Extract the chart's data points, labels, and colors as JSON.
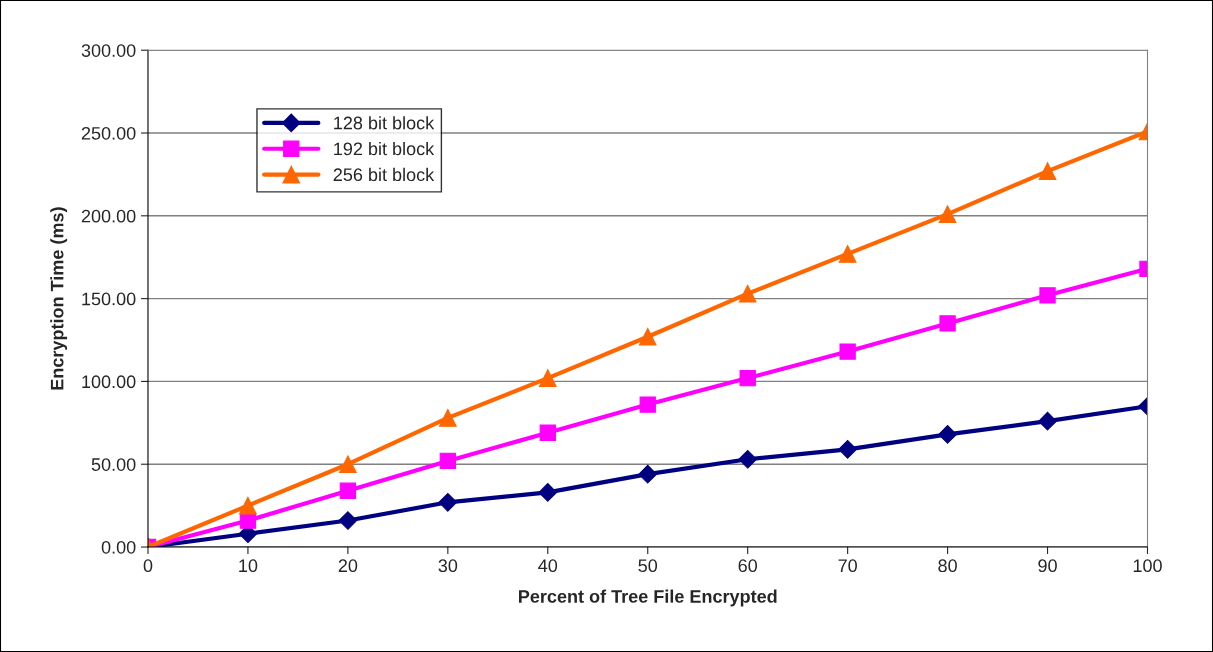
{
  "chart_data": {
    "type": "line",
    "xlabel": "Percent of Tree File Encrypted",
    "ylabel": "Encryption Time (ms)",
    "x": [
      0,
      10,
      20,
      30,
      40,
      50,
      60,
      70,
      80,
      90,
      100
    ],
    "series": [
      {
        "name": "128 bit block",
        "color": "#000080",
        "marker": "diamond",
        "values": [
          0,
          8,
          16,
          27,
          33,
          44,
          53,
          59,
          68,
          76,
          85
        ]
      },
      {
        "name": "192 bit block",
        "color": "#ff00ff",
        "marker": "square",
        "values": [
          0,
          16,
          34,
          52,
          69,
          86,
          102,
          118,
          135,
          152,
          168
        ]
      },
      {
        "name": "256 bit block",
        "color": "#ff6600",
        "marker": "triangle",
        "values": [
          0,
          25,
          50,
          78,
          102,
          127,
          153,
          177,
          201,
          227,
          251
        ]
      }
    ],
    "xlim": [
      0,
      100
    ],
    "xticks": [
      0,
      10,
      20,
      30,
      40,
      50,
      60,
      70,
      80,
      90,
      100
    ],
    "ylim": [
      0,
      300
    ],
    "yticks": [
      {
        "value": 0,
        "label": "0.00"
      },
      {
        "value": 50,
        "label": "50.00"
      },
      {
        "value": 100,
        "label": "100.00"
      },
      {
        "value": 150,
        "label": "150.00"
      },
      {
        "value": 200,
        "label": "200.00"
      },
      {
        "value": 250,
        "label": "250.00"
      },
      {
        "value": 300,
        "label": "300.00"
      }
    ],
    "grid": "y",
    "legend": "top left",
    "line_style": "solid"
  }
}
